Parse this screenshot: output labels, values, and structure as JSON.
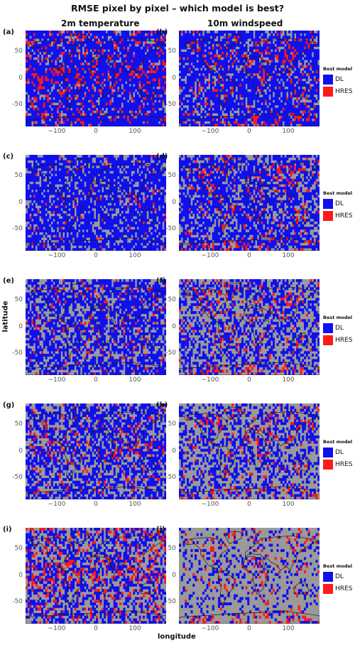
{
  "title": "RMSE pixel by pixel – which model is best?",
  "columns": [
    "2m temperature",
    "10m windspeed"
  ],
  "xlabel": "longitude",
  "ylabel": "latitude",
  "legend": {
    "title": "Best model",
    "entries": [
      {
        "label": "DL",
        "color": "#1010ee"
      },
      {
        "label": "HRES",
        "color": "#ff1a1a"
      }
    ]
  },
  "colors": {
    "DL": "#1010ee",
    "HRES": "#ff1a1a",
    "no_difference": "#9a9a9a",
    "coastline": "#1a1a1a"
  },
  "panels": [
    {
      "label": "(a)",
      "variable": "2m temperature",
      "DL_share": 0.7,
      "HRES_share": 0.12
    },
    {
      "label": "(b)",
      "variable": "10m windspeed",
      "DL_share": 0.72,
      "HRES_share": 0.05
    },
    {
      "label": "(c)",
      "variable": "2m temperature",
      "DL_share": 0.7,
      "HRES_share": 0.02
    },
    {
      "label": "(d)",
      "variable": "10m windspeed",
      "DL_share": 0.62,
      "HRES_share": 0.05
    },
    {
      "label": "(e)",
      "variable": "2m temperature",
      "DL_share": 0.55,
      "HRES_share": 0.05
    },
    {
      "label": "(f)",
      "variable": "10m windspeed",
      "DL_share": 0.42,
      "HRES_share": 0.04
    },
    {
      "label": "(g)",
      "variable": "2m temperature",
      "DL_share": 0.52,
      "HRES_share": 0.06
    },
    {
      "label": "(h)",
      "variable": "10m windspeed",
      "DL_share": 0.38,
      "HRES_share": 0.04
    },
    {
      "label": "(i)",
      "variable": "2m temperature",
      "DL_share": 0.38,
      "HRES_share": 0.12
    },
    {
      "label": "(j)",
      "variable": "10m windspeed",
      "DL_share": 0.18,
      "HRES_share": 0.03
    }
  ],
  "chart_data": {
    "type": "heatmap",
    "title": "RMSE pixel by pixel – which model is best?",
    "xlabel": "longitude",
    "ylabel": "latitude",
    "xlim": [
      -180,
      180
    ],
    "ylim": [
      -90,
      90
    ],
    "x_ticks": [
      -100,
      0,
      100
    ],
    "y_ticks": [
      50,
      0,
      -50
    ],
    "categories": [
      "DL",
      "HRES"
    ],
    "grid": false,
    "legend_position": "right"
  }
}
